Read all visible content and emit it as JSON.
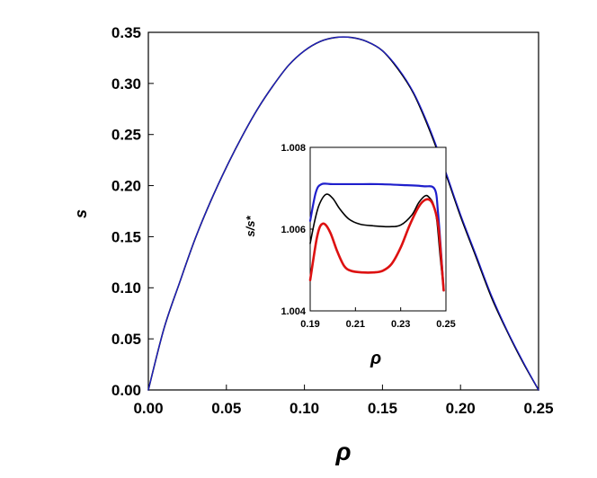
{
  "chart_data": [
    {
      "id": "main",
      "type": "line",
      "xlabel": "ρ",
      "ylabel": "s",
      "xlim": [
        0.0,
        0.25
      ],
      "ylim": [
        0.0,
        0.35
      ],
      "x_ticks": [
        0.0,
        0.05,
        0.1,
        0.15,
        0.2,
        0.25
      ],
      "x_tick_labels": [
        "0.00",
        "0.05",
        "0.10",
        "0.15",
        "0.20",
        "0.25"
      ],
      "y_ticks": [
        0.0,
        0.05,
        0.1,
        0.15,
        0.2,
        0.25,
        0.3,
        0.35
      ],
      "y_tick_labels": [
        "0.00",
        "0.05",
        "0.10",
        "0.15",
        "0.20",
        "0.25",
        "0.30",
        "0.35"
      ],
      "grid": false,
      "series": [
        {
          "color": "#000000",
          "x": [
            0.0,
            0.01,
            0.02,
            0.03,
            0.04,
            0.05,
            0.06,
            0.07,
            0.08,
            0.09,
            0.1,
            0.11,
            0.12,
            0.13,
            0.14,
            0.15,
            0.16,
            0.17,
            0.18,
            0.19,
            0.2,
            0.21,
            0.22,
            0.23,
            0.24,
            0.25
          ],
          "y": [
            0.0,
            0.06,
            0.105,
            0.148,
            0.185,
            0.218,
            0.248,
            0.275,
            0.298,
            0.318,
            0.332,
            0.341,
            0.345,
            0.345,
            0.341,
            0.332,
            0.314,
            0.29,
            0.255,
            0.214,
            0.17,
            0.13,
            0.09,
            0.057,
            0.027,
            0.0
          ]
        },
        {
          "color": "#1f1fcc",
          "x": [
            0.0,
            0.01,
            0.02,
            0.03,
            0.04,
            0.05,
            0.06,
            0.07,
            0.08,
            0.09,
            0.1,
            0.11,
            0.12,
            0.13,
            0.14,
            0.15,
            0.16,
            0.17,
            0.18,
            0.19,
            0.2,
            0.21,
            0.22,
            0.23,
            0.24,
            0.25
          ],
          "y": [
            0.0,
            0.06,
            0.105,
            0.148,
            0.185,
            0.218,
            0.248,
            0.275,
            0.298,
            0.318,
            0.332,
            0.341,
            0.345,
            0.345,
            0.341,
            0.332,
            0.315,
            0.291,
            0.257,
            0.216,
            0.172,
            0.132,
            0.092,
            0.058,
            0.028,
            0.0
          ]
        }
      ]
    },
    {
      "id": "inset",
      "type": "line",
      "xlabel": "ρ",
      "ylabel": "s/s*",
      "xlim": [
        0.19,
        0.25
      ],
      "ylim": [
        1.004,
        1.008
      ],
      "x_ticks": [
        0.19,
        0.21,
        0.23,
        0.25
      ],
      "x_tick_labels": [
        "0.19",
        "0.21",
        "0.23",
        "0.25"
      ],
      "y_ticks": [
        1.004,
        1.006,
        1.008
      ],
      "y_tick_labels": [
        "1.004",
        "1.006",
        "1.008"
      ],
      "grid": false,
      "series": [
        {
          "color": "#1f1fcc",
          "x": [
            0.19,
            0.1925,
            0.195,
            0.2,
            0.21,
            0.22,
            0.23,
            0.24,
            0.245,
            0.2465,
            0.248,
            0.249
          ],
          "y": [
            1.0062,
            1.0069,
            1.0071,
            1.0071,
            1.0071,
            1.0071,
            1.00708,
            1.00705,
            1.00698,
            1.0064,
            1.0053,
            1.0045
          ]
        },
        {
          "color": "#000000",
          "x": [
            0.19,
            0.192,
            0.194,
            0.197,
            0.2,
            0.203,
            0.207,
            0.212,
            0.218,
            0.225,
            0.23,
            0.235,
            0.238,
            0.241,
            0.243,
            0.2445,
            0.246,
            0.2475,
            0.249
          ],
          "y": [
            1.00565,
            1.0062,
            1.0066,
            1.00685,
            1.00675,
            1.0065,
            1.00625,
            1.00612,
            1.00608,
            1.00606,
            1.0061,
            1.00635,
            1.00665,
            1.00682,
            1.00675,
            1.0066,
            1.0062,
            1.0053,
            1.0045
          ]
        },
        {
          "color": "#dd1111",
          "x": [
            0.19,
            0.1915,
            0.193,
            0.1945,
            0.1965,
            0.199,
            0.202,
            0.205,
            0.208,
            0.213,
            0.218,
            0.222,
            0.226,
            0.23,
            0.234,
            0.238,
            0.241,
            0.2435,
            0.2455,
            0.2468,
            0.248,
            0.249
          ],
          "y": [
            1.00475,
            1.0053,
            1.0058,
            1.00608,
            1.00612,
            1.0059,
            1.00545,
            1.0051,
            1.00498,
            1.00494,
            1.00494,
            1.00498,
            1.00515,
            1.00555,
            1.0061,
            1.00655,
            1.00672,
            1.00668,
            1.0064,
            1.006,
            1.0052,
            1.0045
          ]
        }
      ]
    }
  ]
}
